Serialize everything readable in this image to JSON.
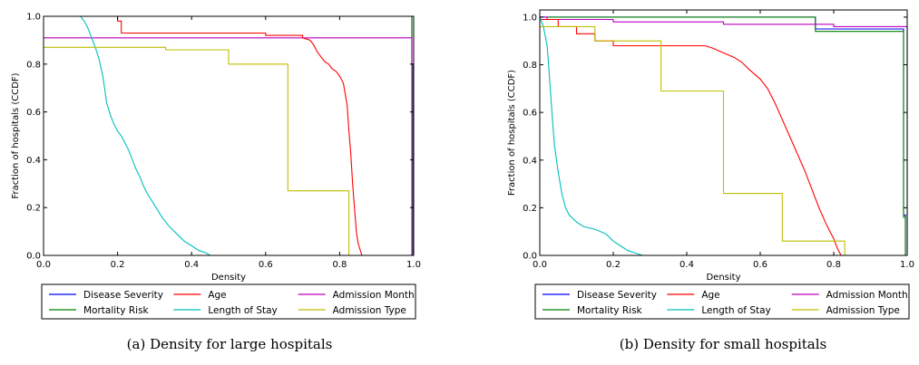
{
  "chart_data": [
    {
      "type": "line",
      "subtype": "step",
      "caption": "(a) Density for large hospitals",
      "xlabel": "Density",
      "ylabel": "Fraction of hospitals (CCDF)",
      "xlim": [
        0.0,
        1.0
      ],
      "ylim": [
        0.0,
        1.0
      ],
      "xticks": [
        "0.0",
        "0.2",
        "0.4",
        "0.6",
        "0.8",
        "1.0"
      ],
      "yticks": [
        "0.0",
        "0.2",
        "0.4",
        "0.6",
        "0.8",
        "1.0"
      ],
      "grid": false,
      "legend_position": "bottom",
      "series": [
        {
          "name": "Disease Severity",
          "color": "#0000ff",
          "points": [
            [
              0,
              1.0
            ],
            [
              0.995,
              1.0
            ],
            [
              0.995,
              0.8
            ],
            [
              0.998,
              0.8
            ],
            [
              0.998,
              0.0
            ]
          ]
        },
        {
          "name": "Mortality Risk",
          "color": "#008000",
          "points": [
            [
              0,
              1.0
            ],
            [
              0.995,
              1.0
            ],
            [
              0.995,
              0.8
            ],
            [
              0.998,
              0.8
            ],
            [
              0.998,
              0.0
            ]
          ]
        },
        {
          "name": "Admission Month",
          "color": "#bf00bf",
          "points": [
            [
              0,
              0.91
            ],
            [
              0.995,
              0.91
            ],
            [
              0.995,
              0.0
            ]
          ]
        },
        {
          "name": "Age",
          "color": "#ff0000",
          "points": [
            [
              0,
              1.0
            ],
            [
              0.2,
              1.0
            ],
            [
              0.2,
              0.98
            ],
            [
              0.21,
              0.98
            ],
            [
              0.21,
              0.93
            ],
            [
              0.6,
              0.93
            ],
            [
              0.6,
              0.92
            ],
            [
              0.7,
              0.92
            ],
            [
              0.7,
              0.91
            ],
            [
              0.72,
              0.9
            ],
            [
              0.73,
              0.88
            ],
            [
              0.74,
              0.85
            ],
            [
              0.75,
              0.83
            ],
            [
              0.76,
              0.81
            ],
            [
              0.77,
              0.8
            ],
            [
              0.78,
              0.78
            ],
            [
              0.79,
              0.77
            ],
            [
              0.8,
              0.75
            ],
            [
              0.81,
              0.72
            ],
            [
              0.82,
              0.63
            ],
            [
              0.825,
              0.52
            ],
            [
              0.83,
              0.43
            ],
            [
              0.835,
              0.3
            ],
            [
              0.84,
              0.2
            ],
            [
              0.845,
              0.1
            ],
            [
              0.85,
              0.05
            ],
            [
              0.86,
              0.0
            ]
          ]
        },
        {
          "name": "Length of Stay",
          "color": "#00bfbf",
          "points": [
            [
              0,
              1.0
            ],
            [
              0.1,
              1.0
            ],
            [
              0.11,
              0.98
            ],
            [
              0.12,
              0.95
            ],
            [
              0.13,
              0.91
            ],
            [
              0.14,
              0.87
            ],
            [
              0.15,
              0.82
            ],
            [
              0.16,
              0.75
            ],
            [
              0.165,
              0.7
            ],
            [
              0.17,
              0.64
            ],
            [
              0.18,
              0.59
            ],
            [
              0.19,
              0.55
            ],
            [
              0.2,
              0.52
            ],
            [
              0.21,
              0.5
            ],
            [
              0.22,
              0.47
            ],
            [
              0.23,
              0.44
            ],
            [
              0.24,
              0.4
            ],
            [
              0.25,
              0.36
            ],
            [
              0.26,
              0.33
            ],
            [
              0.27,
              0.29
            ],
            [
              0.28,
              0.26
            ],
            [
              0.3,
              0.21
            ],
            [
              0.32,
              0.16
            ],
            [
              0.34,
              0.12
            ],
            [
              0.36,
              0.09
            ],
            [
              0.38,
              0.06
            ],
            [
              0.4,
              0.04
            ],
            [
              0.42,
              0.02
            ],
            [
              0.44,
              0.01
            ],
            [
              0.45,
              0.0
            ]
          ]
        },
        {
          "name": "Admission Type",
          "color": "#bfbf00",
          "points": [
            [
              0,
              0.87
            ],
            [
              0.33,
              0.87
            ],
            [
              0.33,
              0.86
            ],
            [
              0.5,
              0.86
            ],
            [
              0.5,
              0.8
            ],
            [
              0.66,
              0.8
            ],
            [
              0.66,
              0.27
            ],
            [
              0.825,
              0.27
            ],
            [
              0.825,
              0.0
            ]
          ]
        }
      ]
    },
    {
      "type": "line",
      "subtype": "step",
      "caption": "(b) Density for small hospitals",
      "xlabel": "Density",
      "ylabel": "Fraction of hospitals (CCDF)",
      "xlim": [
        0.0,
        1.0
      ],
      "ylim": [
        0.0,
        1.03
      ],
      "xticks": [
        "0.0",
        "0.2",
        "0.4",
        "0.6",
        "0.8",
        "1.0"
      ],
      "yticks": [
        "0.0",
        "0.2",
        "0.4",
        "0.6",
        "0.8",
        "1.0"
      ],
      "grid": false,
      "legend_position": "bottom",
      "series": [
        {
          "name": "Disease Severity",
          "color": "#0000ff",
          "points": [
            [
              0,
              1.0
            ],
            [
              0.75,
              1.0
            ],
            [
              0.75,
              0.95
            ],
            [
              0.99,
              0.95
            ],
            [
              0.99,
              0.17
            ],
            [
              0.995,
              0.17
            ],
            [
              0.995,
              0.0
            ]
          ]
        },
        {
          "name": "Mortality Risk",
          "color": "#008000",
          "points": [
            [
              0,
              1.0
            ],
            [
              0.75,
              1.0
            ],
            [
              0.75,
              0.94
            ],
            [
              0.99,
              0.94
            ],
            [
              0.99,
              0.16
            ],
            [
              0.995,
              0.16
            ],
            [
              0.995,
              0.0
            ]
          ]
        },
        {
          "name": "Admission Month",
          "color": "#bf00bf",
          "points": [
            [
              0,
              1.0
            ],
            [
              0.02,
              1.0
            ],
            [
              0.02,
              0.99
            ],
            [
              0.2,
              0.99
            ],
            [
              0.2,
              0.98
            ],
            [
              0.5,
              0.98
            ],
            [
              0.5,
              0.97
            ],
            [
              0.8,
              0.97
            ],
            [
              0.8,
              0.96
            ],
            [
              1.0,
              0.96
            ],
            [
              1.0,
              0.0
            ]
          ]
        },
        {
          "name": "Age",
          "color": "#ff0000",
          "points": [
            [
              0,
              0.99
            ],
            [
              0.05,
              0.99
            ],
            [
              0.05,
              0.96
            ],
            [
              0.1,
              0.96
            ],
            [
              0.1,
              0.93
            ],
            [
              0.15,
              0.93
            ],
            [
              0.15,
              0.9
            ],
            [
              0.2,
              0.9
            ],
            [
              0.2,
              0.88
            ],
            [
              0.45,
              0.88
            ],
            [
              0.47,
              0.87
            ],
            [
              0.5,
              0.85
            ],
            [
              0.53,
              0.83
            ],
            [
              0.55,
              0.81
            ],
            [
              0.57,
              0.78
            ],
            [
              0.6,
              0.74
            ],
            [
              0.62,
              0.7
            ],
            [
              0.64,
              0.64
            ],
            [
              0.66,
              0.57
            ],
            [
              0.68,
              0.5
            ],
            [
              0.7,
              0.43
            ],
            [
              0.72,
              0.36
            ],
            [
              0.74,
              0.28
            ],
            [
              0.76,
              0.2
            ],
            [
              0.78,
              0.13
            ],
            [
              0.8,
              0.07
            ],
            [
              0.81,
              0.03
            ],
            [
              0.82,
              0.0
            ]
          ]
        },
        {
          "name": "Length of Stay",
          "color": "#00bfbf",
          "points": [
            [
              0,
              1.0
            ],
            [
              0.01,
              0.96
            ],
            [
              0.02,
              0.88
            ],
            [
              0.025,
              0.78
            ],
            [
              0.03,
              0.67
            ],
            [
              0.035,
              0.56
            ],
            [
              0.04,
              0.46
            ],
            [
              0.05,
              0.35
            ],
            [
              0.06,
              0.26
            ],
            [
              0.07,
              0.2
            ],
            [
              0.08,
              0.17
            ],
            [
              0.1,
              0.14
            ],
            [
              0.12,
              0.12
            ],
            [
              0.15,
              0.11
            ],
            [
              0.18,
              0.09
            ],
            [
              0.2,
              0.06
            ],
            [
              0.22,
              0.04
            ],
            [
              0.24,
              0.02
            ],
            [
              0.26,
              0.01
            ],
            [
              0.28,
              0.0
            ]
          ]
        },
        {
          "name": "Admission Type",
          "color": "#bfbf00",
          "points": [
            [
              0,
              0.96
            ],
            [
              0.15,
              0.96
            ],
            [
              0.15,
              0.9
            ],
            [
              0.33,
              0.9
            ],
            [
              0.33,
              0.69
            ],
            [
              0.5,
              0.69
            ],
            [
              0.5,
              0.26
            ],
            [
              0.66,
              0.26
            ],
            [
              0.66,
              0.06
            ],
            [
              0.83,
              0.06
            ],
            [
              0.83,
              0.0
            ]
          ]
        }
      ]
    }
  ]
}
